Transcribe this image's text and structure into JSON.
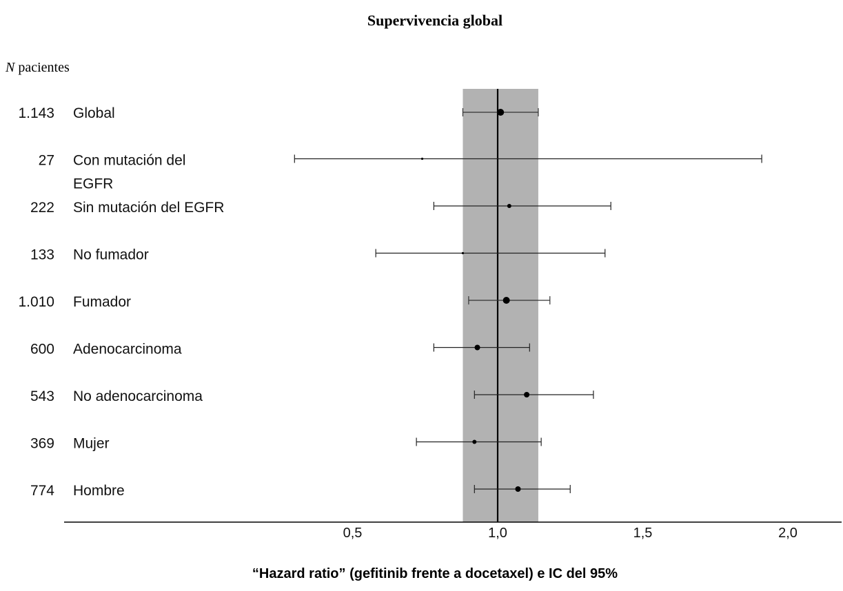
{
  "chart_data": {
    "type": "forest",
    "title": "Supervivencia global",
    "column_header_italic": "N",
    "column_header_rest": " pacientes",
    "xlabel": "“Hazard ratio” (gefitinib frente a docetaxel) e IC del 95%",
    "xlim": [
      0.0,
      2.2
    ],
    "x_ticks": [
      {
        "value": 0.5,
        "label": "0,5"
      },
      {
        "value": 1.0,
        "label": "1,0"
      },
      {
        "value": 1.5,
        "label": "1,5"
      },
      {
        "value": 2.0,
        "label": "2,0"
      }
    ],
    "reference_line": 1.0,
    "shaded_band": [
      0.88,
      1.14
    ],
    "rows": [
      {
        "n": "1.143",
        "label": [
          "Global"
        ],
        "hr": 1.01,
        "lo": 0.88,
        "hi": 1.14,
        "marker": "large"
      },
      {
        "n": "27",
        "label": [
          "Con mutación del",
          "EGFR"
        ],
        "hr": 0.74,
        "lo": 0.3,
        "hi": 1.91,
        "marker": "tiny"
      },
      {
        "n": "222",
        "label": [
          "Sin mutación del EGFR"
        ],
        "hr": 1.04,
        "lo": 0.78,
        "hi": 1.39,
        "marker": "small"
      },
      {
        "n": "133",
        "label": [
          "No fumador"
        ],
        "hr": 0.88,
        "lo": 0.58,
        "hi": 1.37,
        "marker": "tiny"
      },
      {
        "n": "1.010",
        "label": [
          "Fumador"
        ],
        "hr": 1.03,
        "lo": 0.9,
        "hi": 1.18,
        "marker": "large"
      },
      {
        "n": "600",
        "label": [
          "Adenocarcinoma"
        ],
        "hr": 0.93,
        "lo": 0.78,
        "hi": 1.11,
        "marker": "medium"
      },
      {
        "n": "543",
        "label": [
          "No adenocarcinoma"
        ],
        "hr": 1.1,
        "lo": 0.92,
        "hi": 1.33,
        "marker": "medium"
      },
      {
        "n": "369",
        "label": [
          "Mujer"
        ],
        "hr": 0.92,
        "lo": 0.72,
        "hi": 1.15,
        "marker": "small"
      },
      {
        "n": "774",
        "label": [
          "Hombre"
        ],
        "hr": 1.07,
        "lo": 0.92,
        "hi": 1.25,
        "marker": "medium"
      }
    ]
  }
}
